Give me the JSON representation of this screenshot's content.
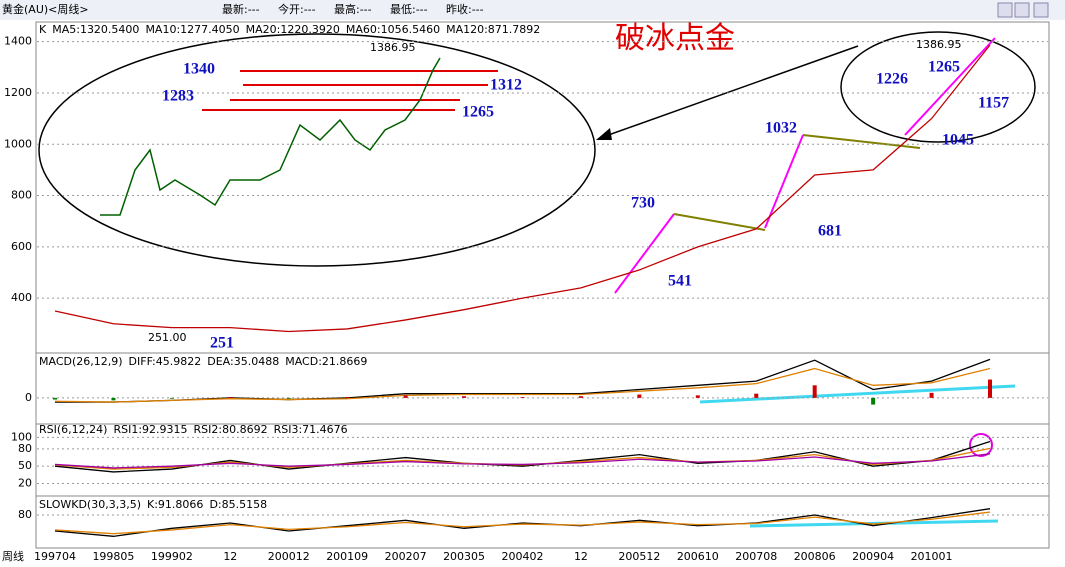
{
  "window": {
    "title": "黄金(AU)<周线>",
    "quote": [
      "最新:---",
      "今开:---",
      "最高:---",
      "最低:---",
      "昨收:---"
    ],
    "period": "周线"
  },
  "chart_data": [
    {
      "type": "line",
      "title": "破冰点金",
      "indicator": "K",
      "legend": [
        "MA5:1320.5400",
        "MA10:1277.4050",
        "MA20:1220.3920",
        "MA60:1056.5460",
        "MA120:871.7892"
      ],
      "categories": [
        "199704",
        "199805",
        "199902",
        "12",
        "200012",
        "200109",
        "200207",
        "200305",
        "200402",
        "12",
        "200512",
        "200610",
        "200708",
        "200806",
        "200904",
        "201001",
        null
      ],
      "values": [
        350,
        300,
        285,
        285,
        270,
        280,
        315,
        355,
        400,
        440,
        510,
        600,
        670,
        880,
        900,
        1100,
        1386.95
      ],
      "color": "#c00000",
      "ylim": [
        190,
        1465
      ],
      "yticks": [
        400,
        600,
        800,
        1000,
        1200,
        1400
      ],
      "grid": true,
      "annotations": [
        "1386.95",
        "1340",
        "1312",
        "1283",
        "1265",
        "730",
        "541",
        "1032",
        "681",
        "1226",
        "1265",
        "1157",
        "1045",
        "1386.95",
        "251.00",
        "251"
      ]
    },
    {
      "type": "macd",
      "indicator": "MACD(26,12,9)",
      "ylim": [
        -30,
        50
      ],
      "yticks": [
        0
      ],
      "grid": true,
      "series": [
        {
          "name": "DIFF:45.9822",
          "color": "#000000",
          "values": [
            -5,
            -5,
            -3,
            0,
            -2,
            0,
            5,
            5,
            5,
            5,
            10,
            15,
            20,
            45,
            10,
            20,
            45.98
          ]
        },
        {
          "name": "DEA:35.0488",
          "color": "#e08000",
          "values": [
            -4,
            -5,
            -3,
            -1,
            -2,
            -1,
            3,
            4,
            4,
            4,
            8,
            12,
            17,
            35,
            15,
            18,
            35.05
          ]
        },
        {
          "name": "MACD:21.8669",
          "color": "#d00000",
          "values": [
            -2,
            -3,
            -1,
            1,
            -1,
            1,
            3,
            2,
            1,
            2,
            4,
            3,
            5,
            15,
            -8,
            6,
            21.87
          ]
        }
      ]
    },
    {
      "type": "line",
      "indicator": "RSI(6,12,24)",
      "ylim": [
        0,
        118
      ],
      "yticks": [
        20,
        50,
        80,
        100
      ],
      "grid": true,
      "series": [
        {
          "name": "RSI1:92.9315",
          "color": "#000000",
          "values": [
            50,
            40,
            45,
            60,
            45,
            55,
            65,
            55,
            50,
            60,
            70,
            55,
            60,
            75,
            50,
            60,
            92.93
          ]
        },
        {
          "name": "RSI2:80.8692",
          "color": "#e08000",
          "values": [
            52,
            45,
            48,
            57,
            48,
            54,
            60,
            55,
            52,
            58,
            65,
            57,
            60,
            70,
            53,
            60,
            80.87
          ]
        },
        {
          "name": "RSI3:71.4676",
          "color": "#a000a0",
          "values": [
            53,
            47,
            50,
            55,
            50,
            53,
            58,
            54,
            53,
            56,
            62,
            57,
            59,
            66,
            55,
            59,
            71.47
          ]
        }
      ]
    },
    {
      "type": "line",
      "indicator": "SLOWKD(30,3,3,5)",
      "ylim": [
        20,
        110
      ],
      "yticks": [
        80
      ],
      "grid": true,
      "series": [
        {
          "name": "K:91.8066",
          "color": "#000000",
          "values": [
            50,
            40,
            55,
            65,
            50,
            60,
            70,
            55,
            65,
            60,
            70,
            60,
            65,
            80,
            60,
            75,
            91.81
          ]
        },
        {
          "name": "D:85.5158",
          "color": "#e08000",
          "values": [
            52,
            45,
            52,
            62,
            53,
            58,
            66,
            58,
            63,
            61,
            67,
            62,
            64,
            76,
            63,
            72,
            85.52
          ]
        }
      ]
    }
  ]
}
